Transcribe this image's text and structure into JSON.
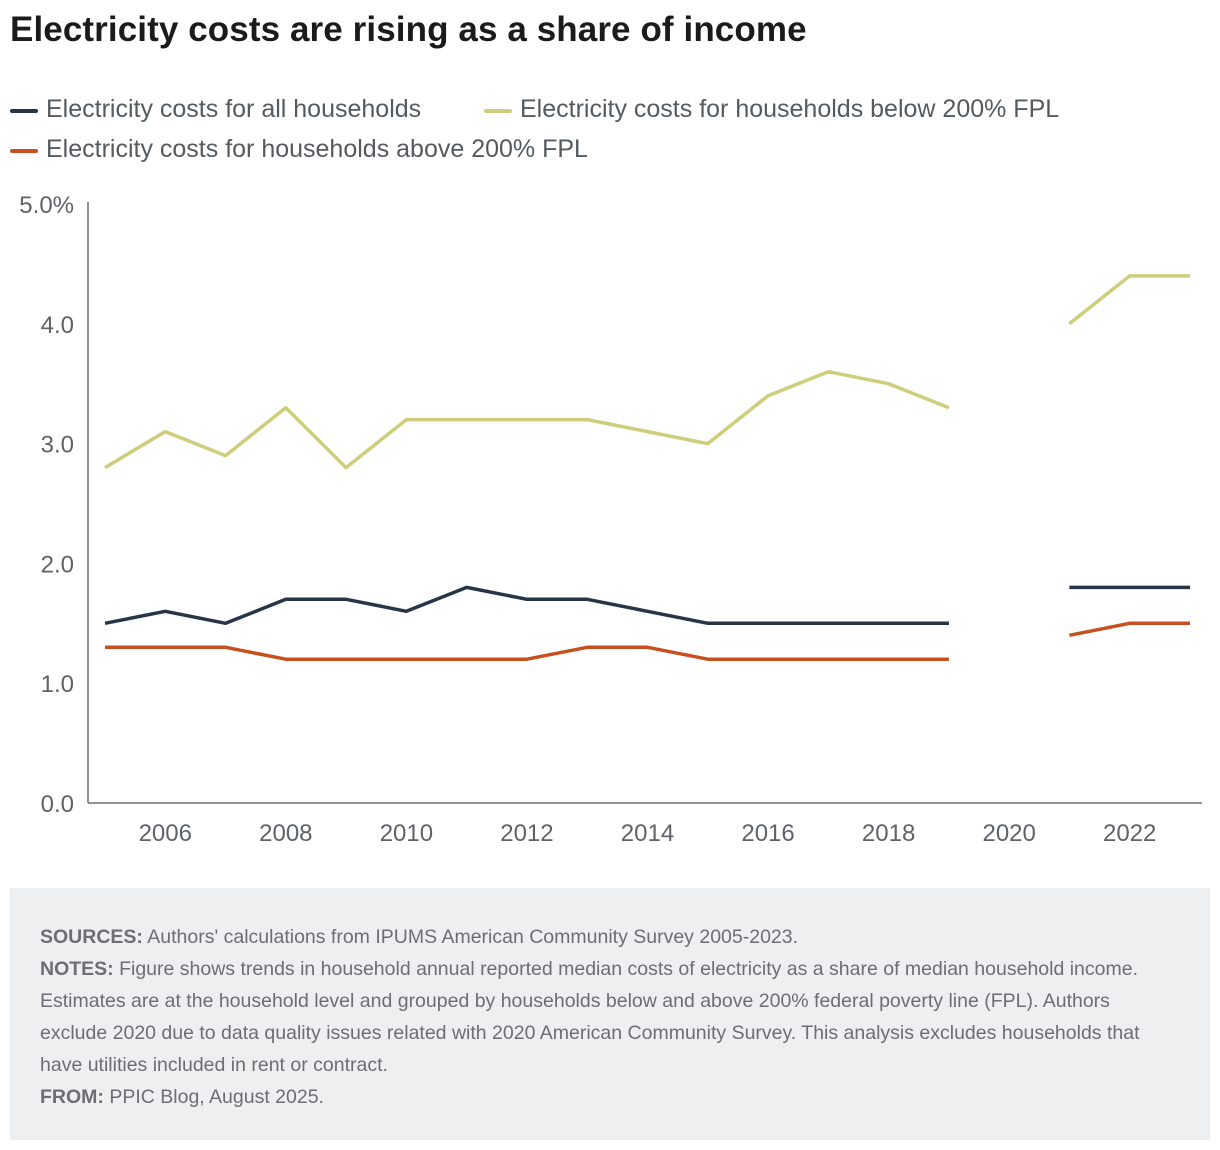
{
  "title": "Electricity costs are rising as a share of income",
  "legend": [
    {
      "label": "Electricity costs for all households",
      "color": "#273549"
    },
    {
      "label": "Electricity costs for households below 200% FPL",
      "color": "#cfcd7c"
    },
    {
      "label": "Electricity costs for households above 200% FPL",
      "color": "#c8501e"
    }
  ],
  "chart_data": {
    "type": "line",
    "title": "Electricity costs are rising as a share of income",
    "xlabel": "",
    "ylabel": "",
    "xlim": [
      2005,
      2023
    ],
    "ylim": [
      0,
      5
    ],
    "x_ticks": [
      2006,
      2008,
      2010,
      2012,
      2014,
      2016,
      2018,
      2020,
      2022
    ],
    "x_tick_labels": [
      "2006",
      "2008",
      "2010",
      "2012",
      "2014",
      "2016",
      "2018",
      "2020",
      "2022"
    ],
    "y_ticks": [
      0,
      1,
      2,
      3,
      4,
      5
    ],
    "y_tick_labels": [
      "0.0",
      "1.0",
      "2.0",
      "3.0",
      "4.0",
      "5.0%"
    ],
    "x": [
      2005,
      2006,
      2007,
      2008,
      2009,
      2010,
      2011,
      2012,
      2013,
      2014,
      2015,
      2016,
      2017,
      2018,
      2019,
      2020,
      2021,
      2022,
      2023
    ],
    "series": [
      {
        "name": "Electricity costs for all households",
        "color": "#273549",
        "values": [
          1.5,
          1.6,
          1.5,
          1.7,
          1.7,
          1.6,
          1.8,
          1.7,
          1.7,
          1.6,
          1.5,
          1.5,
          1.5,
          1.5,
          1.5,
          null,
          1.8,
          1.8,
          1.8
        ]
      },
      {
        "name": "Electricity costs for households below 200% FPL",
        "color": "#cfcd7c",
        "values": [
          2.8,
          3.1,
          2.9,
          3.3,
          2.8,
          3.2,
          3.2,
          3.2,
          3.2,
          3.1,
          3.0,
          3.4,
          3.6,
          3.5,
          3.3,
          null,
          4.0,
          4.4,
          4.4
        ]
      },
      {
        "name": "Electricity costs for households above 200% FPL",
        "color": "#c8501e",
        "values": [
          1.3,
          1.3,
          1.3,
          1.2,
          1.2,
          1.2,
          1.2,
          1.2,
          1.3,
          1.3,
          1.2,
          1.2,
          1.2,
          1.2,
          1.2,
          null,
          1.4,
          1.5,
          1.5
        ]
      }
    ],
    "grid": false,
    "legend_position": "top-left"
  },
  "notes": {
    "sources_label": "SOURCES:",
    "sources_text": " Authors' calculations from IPUMS American Community Survey 2005-2023.",
    "notes_label": "NOTES:",
    "notes_text": " Figure shows trends in household annual reported median costs of electricity as a share of median household income. Estimates are at the household level and grouped by households below and above 200% federal poverty line (FPL). Authors exclude 2020 due to data quality issues related with 2020 American Community Survey. This analysis excludes households that have utilities included in rent or contract.",
    "from_label": "FROM:",
    "from_text": " PPIC Blog, August 2025."
  }
}
